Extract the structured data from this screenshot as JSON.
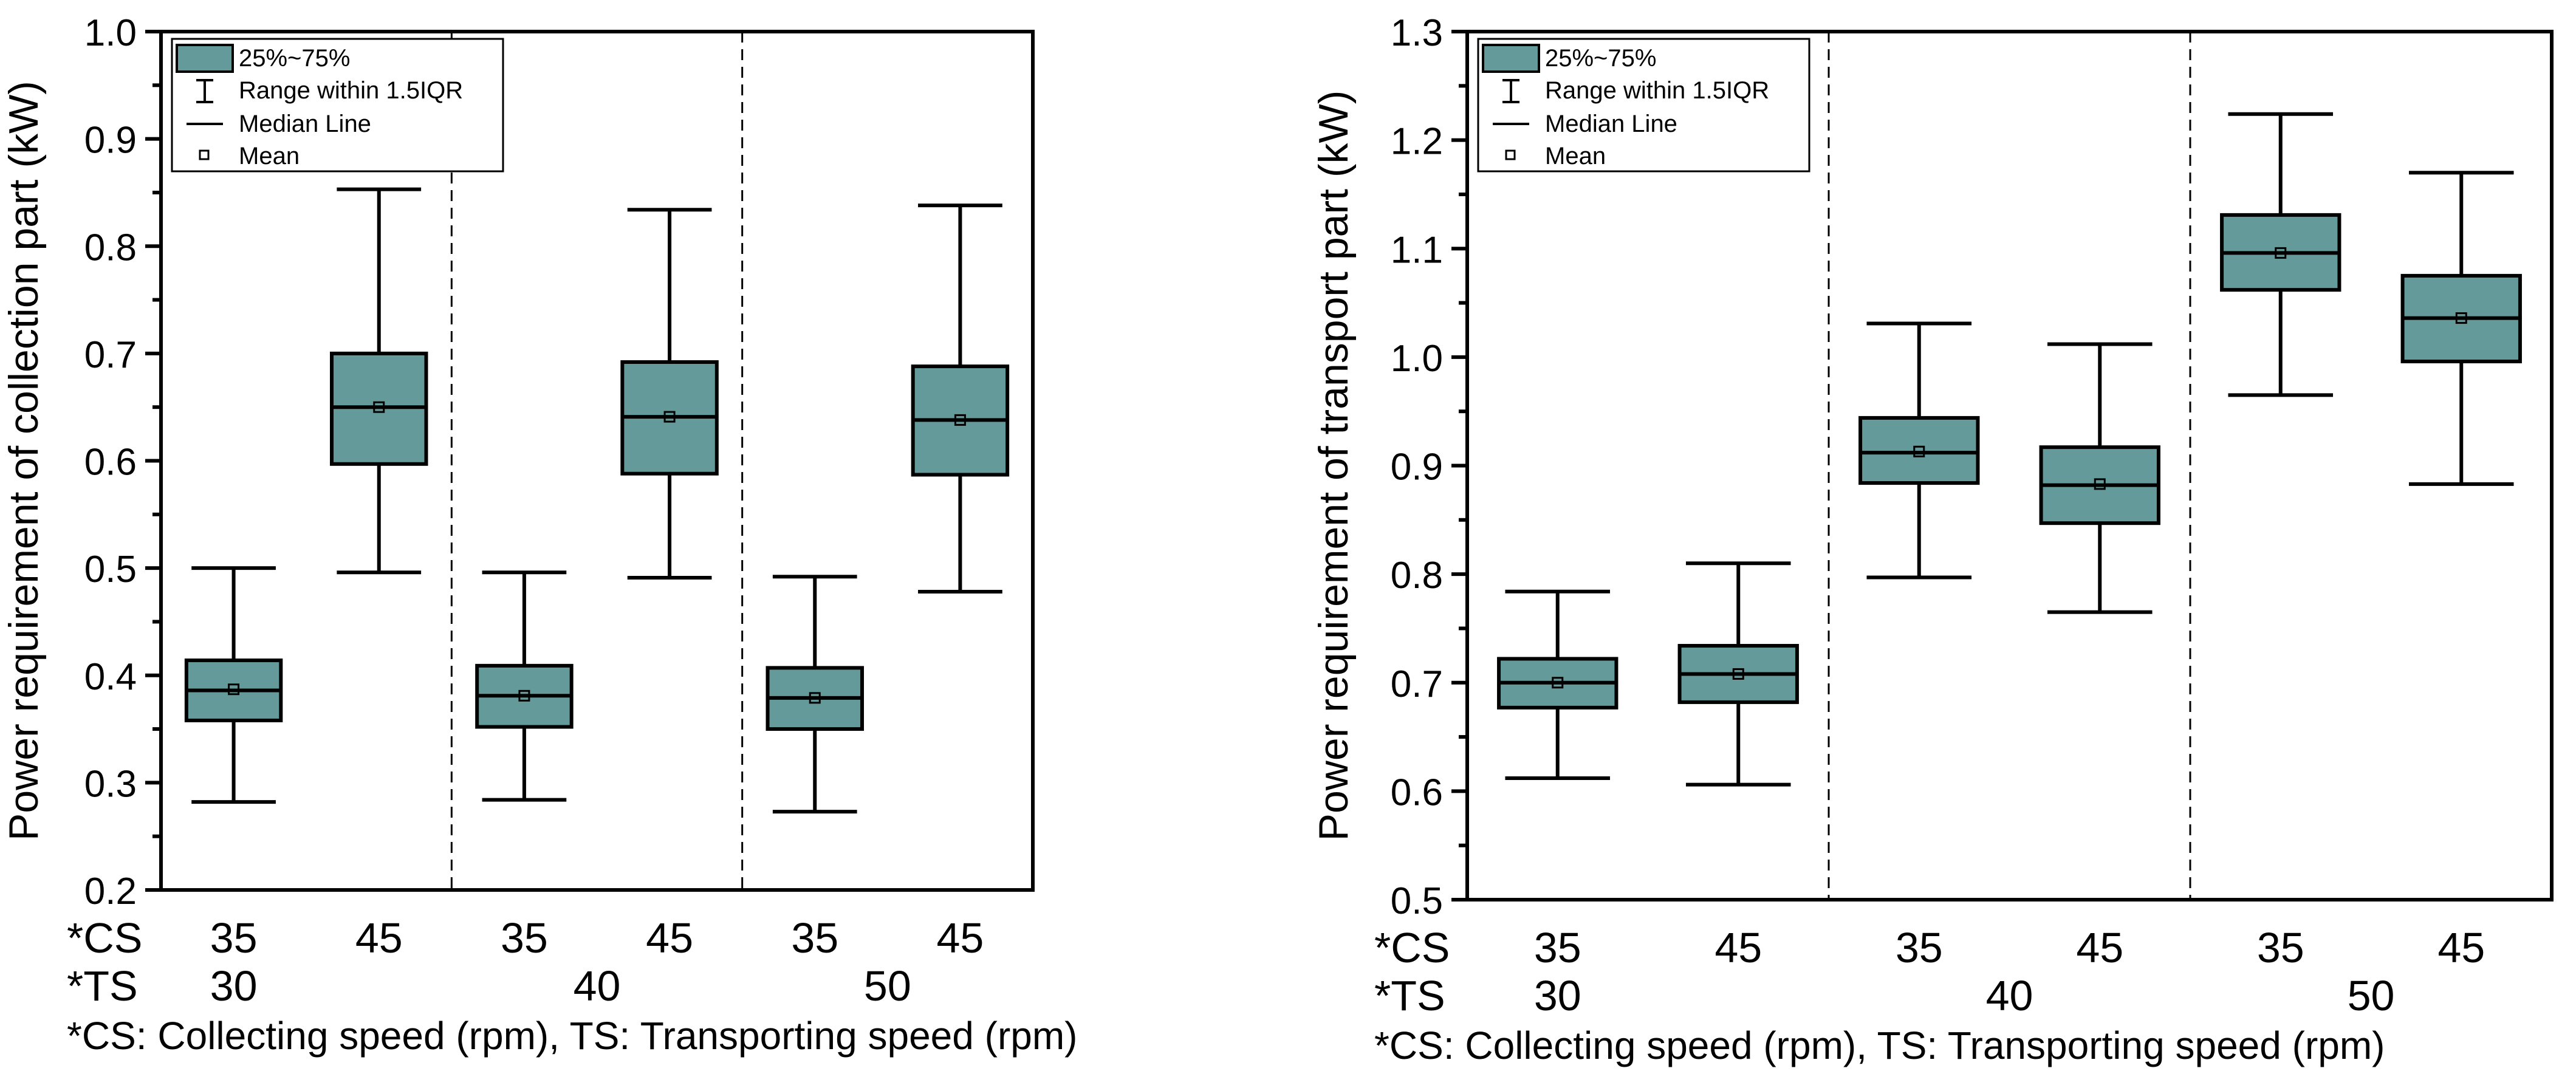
{
  "colors": {
    "box_fill": "#659a9a",
    "stroke": "#000000",
    "background": "#ffffff"
  },
  "legend_items": [
    "25%~75%",
    "Range within 1.5IQR",
    "Median Line",
    "Mean"
  ],
  "chart_data": [
    {
      "type": "box",
      "title": "",
      "xlabel": "",
      "ylabel": "Power requirement of collection part (kW)",
      "ylim": [
        0.2,
        1.0
      ],
      "yticks": [
        "0.2",
        "0.3",
        "0.4",
        "0.5",
        "0.6",
        "0.7",
        "0.8",
        "0.9",
        "1.0"
      ],
      "cs_label": "*CS",
      "ts_label": "*TS",
      "footnote": "*CS: Collecting speed (rpm), TS: Transporting speed (rpm)",
      "groups": [
        {
          "ts": "30",
          "boxes": [
            {
              "cs": "35",
              "min": 0.282,
              "q1": 0.358,
              "median": 0.386,
              "q3": 0.414,
              "max": 0.5,
              "mean": 0.387
            },
            {
              "cs": "45",
              "min": 0.496,
              "q1": 0.597,
              "median": 0.65,
              "q3": 0.7,
              "max": 0.853,
              "mean": 0.65
            }
          ]
        },
        {
          "ts": "40",
          "boxes": [
            {
              "cs": "35",
              "min": 0.284,
              "q1": 0.352,
              "median": 0.381,
              "q3": 0.409,
              "max": 0.496,
              "mean": 0.381
            },
            {
              "cs": "45",
              "min": 0.491,
              "q1": 0.588,
              "median": 0.641,
              "q3": 0.692,
              "max": 0.834,
              "mean": 0.641
            }
          ]
        },
        {
          "ts": "50",
          "boxes": [
            {
              "cs": "35",
              "min": 0.273,
              "q1": 0.35,
              "median": 0.379,
              "q3": 0.407,
              "max": 0.492,
              "mean": 0.379
            },
            {
              "cs": "45",
              "min": 0.478,
              "q1": 0.587,
              "median": 0.638,
              "q3": 0.688,
              "max": 0.838,
              "mean": 0.638
            }
          ]
        }
      ]
    },
    {
      "type": "box",
      "title": "",
      "xlabel": "",
      "ylabel": "Power requirement of transport part (kW)",
      "ylim": [
        0.5,
        1.3
      ],
      "yticks": [
        "0.5",
        "0.6",
        "0.7",
        "0.8",
        "0.9",
        "1.0",
        "1.1",
        "1.2",
        "1.3"
      ],
      "cs_label": "*CS",
      "ts_label": "*TS",
      "footnote": "*CS: Collecting speed (rpm), TS: Transporting speed (rpm)",
      "groups": [
        {
          "ts": "30",
          "boxes": [
            {
              "cs": "35",
              "min": 0.612,
              "q1": 0.677,
              "median": 0.7,
              "q3": 0.722,
              "max": 0.784,
              "mean": 0.7
            },
            {
              "cs": "45",
              "min": 0.606,
              "q1": 0.682,
              "median": 0.708,
              "q3": 0.734,
              "max": 0.81,
              "mean": 0.708
            }
          ]
        },
        {
          "ts": "40",
          "boxes": [
            {
              "cs": "35",
              "min": 0.797,
              "q1": 0.884,
              "median": 0.912,
              "q3": 0.944,
              "max": 1.031,
              "mean": 0.913
            },
            {
              "cs": "45",
              "min": 0.765,
              "q1": 0.847,
              "median": 0.882,
              "q3": 0.917,
              "max": 1.012,
              "mean": 0.883
            }
          ]
        },
        {
          "ts": "50",
          "boxes": [
            {
              "cs": "35",
              "min": 0.965,
              "q1": 1.062,
              "median": 1.096,
              "q3": 1.131,
              "max": 1.224,
              "mean": 1.096
            },
            {
              "cs": "45",
              "min": 0.883,
              "q1": 0.996,
              "median": 1.036,
              "q3": 1.075,
              "max": 1.17,
              "mean": 1.036
            }
          ]
        }
      ]
    }
  ]
}
